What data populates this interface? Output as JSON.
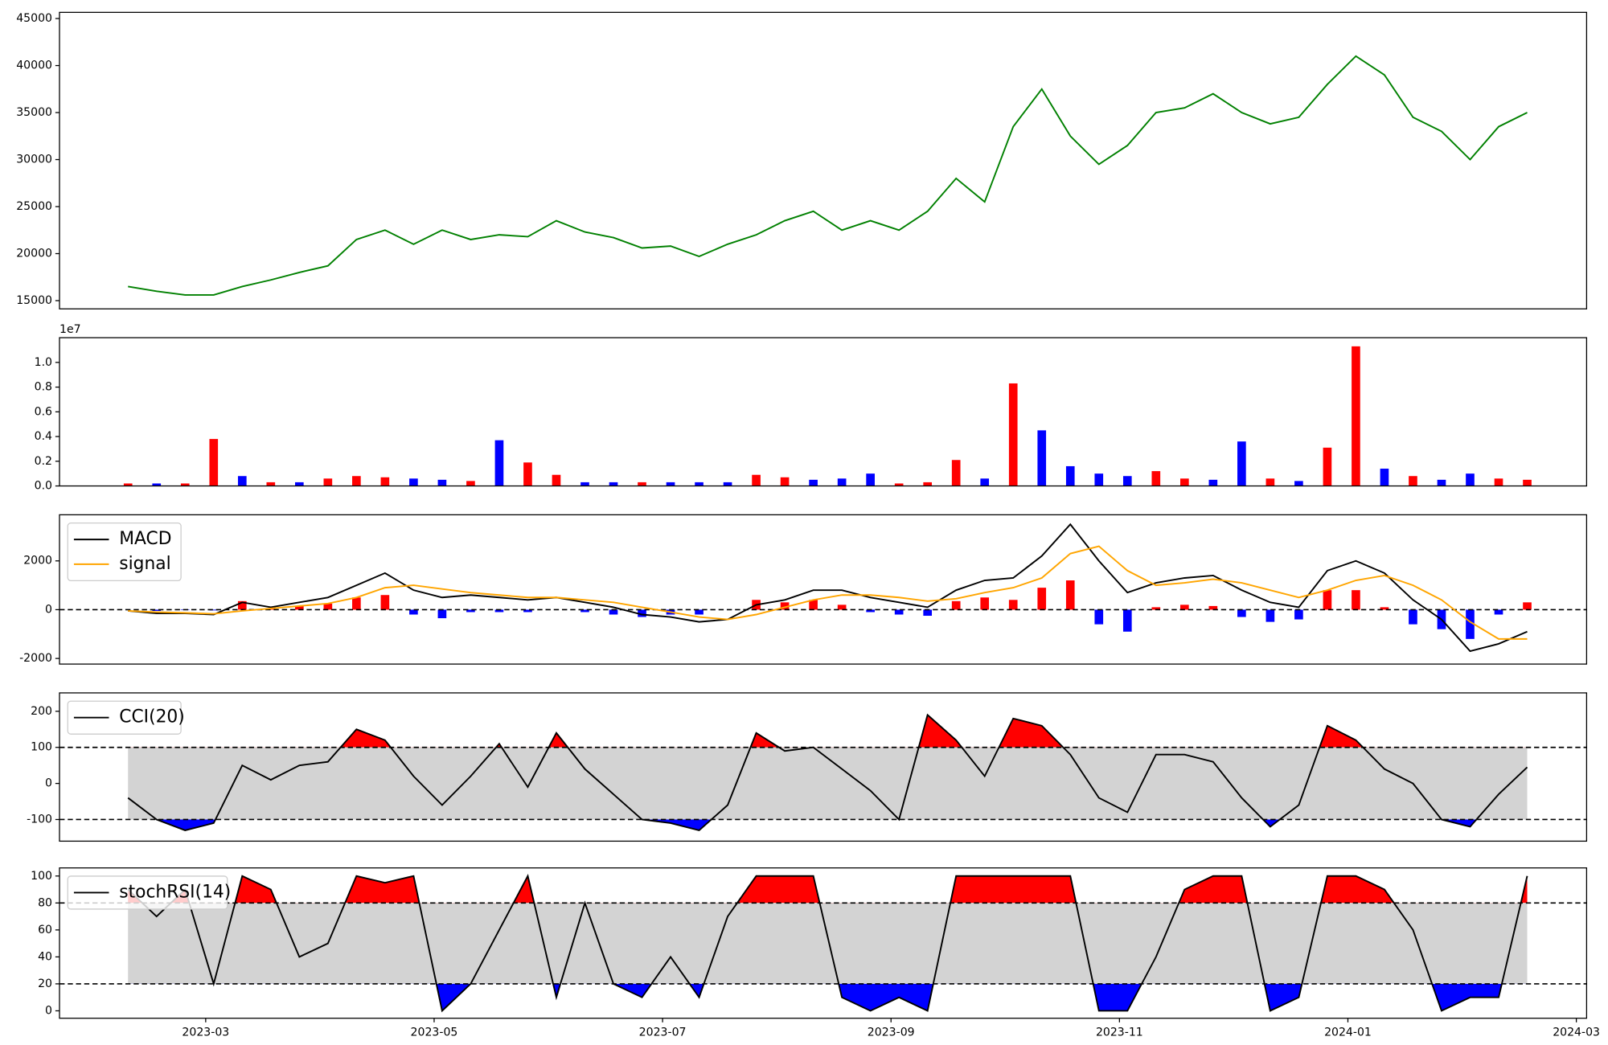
{
  "chart_data": [
    {
      "type": "line",
      "color": "#008000",
      "xlim": [
        0.72,
        14.09
      ],
      "ylim": [
        14124,
        45657
      ],
      "yticks": [
        15000,
        20000,
        25000,
        30000,
        35000,
        40000,
        45000
      ],
      "x": [
        1.32,
        1.57,
        1.82,
        2.07,
        2.32,
        2.57,
        2.82,
        3.07,
        3.32,
        3.57,
        3.82,
        4.07,
        4.32,
        4.57,
        4.82,
        5.07,
        5.32,
        5.57,
        5.82,
        6.07,
        6.32,
        6.57,
        6.82,
        7.07,
        7.32,
        7.57,
        7.82,
        8.07,
        8.32,
        8.57,
        8.82,
        9.07,
        9.32,
        9.57,
        9.82,
        10.07,
        10.32,
        10.57,
        10.82,
        11.07,
        11.32,
        11.57,
        11.82,
        12.07,
        12.32,
        12.57,
        12.82,
        13.07,
        13.32,
        13.57
      ],
      "values": [
        16500,
        16000,
        15600,
        15600,
        16500,
        17200,
        18000,
        18700,
        21500,
        22500,
        21000,
        22500,
        21500,
        22000,
        21800,
        23500,
        22300,
        21700,
        20600,
        20800,
        19700,
        21000,
        22000,
        23500,
        24500,
        22500,
        23500,
        22500,
        24500,
        28000,
        25500,
        33500,
        37500,
        32500,
        29500,
        31500,
        35000,
        35500,
        37000,
        35000,
        33800,
        34500,
        38000,
        41000,
        39000,
        34500,
        33000,
        30000,
        33500,
        35000
      ]
    },
    {
      "type": "bar",
      "offset_label": "1e7",
      "xlim": [
        0.72,
        14.09
      ],
      "ylim": [
        0,
        1.2
      ],
      "yticks": [
        {
          "value": 0,
          "label": "0.0"
        },
        {
          "value": 0.2,
          "label": "0.2"
        },
        {
          "value": 0.4,
          "label": "0.4"
        },
        {
          "value": 0.6,
          "label": "0.6"
        },
        {
          "value": 0.8,
          "label": "0.8"
        },
        {
          "value": 1,
          "label": "1.0"
        }
      ],
      "x": [
        1.32,
        1.57,
        1.82,
        2.07,
        2.32,
        2.57,
        2.82,
        3.07,
        3.32,
        3.57,
        3.82,
        4.07,
        4.32,
        4.57,
        4.82,
        5.07,
        5.32,
        5.57,
        5.82,
        6.07,
        6.32,
        6.57,
        6.82,
        7.07,
        7.32,
        7.57,
        7.82,
        8.07,
        8.32,
        8.57,
        8.82,
        9.07,
        9.32,
        9.57,
        9.82,
        10.07,
        10.32,
        10.57,
        10.82,
        11.07,
        11.32,
        11.57,
        11.82,
        12.07,
        12.32,
        12.57,
        12.82,
        13.07,
        13.32,
        13.57
      ],
      "values": [
        0.02,
        0.02,
        0.02,
        0.38,
        0.08,
        0.03,
        0.03,
        0.06,
        0.08,
        0.07,
        0.06,
        0.05,
        0.04,
        0.37,
        0.19,
        0.09,
        0.03,
        0.03,
        0.03,
        0.03,
        0.03,
        0.03,
        0.09,
        0.07,
        0.05,
        0.06,
        0.1,
        0.02,
        0.03,
        0.21,
        0.06,
        0.83,
        0.45,
        0.16,
        0.1,
        0.08,
        0.12,
        0.06,
        0.05,
        0.36,
        0.06,
        0.04,
        0.31,
        1.13,
        0.14,
        0.08,
        0.05,
        0.1,
        0.06,
        0.05
      ],
      "colors": [
        "red",
        "blue",
        "red",
        "red",
        "blue",
        "red",
        "blue",
        "red",
        "red",
        "red",
        "blue",
        "blue",
        "red",
        "blue",
        "red",
        "red",
        "blue",
        "blue",
        "red",
        "blue",
        "blue",
        "blue",
        "red",
        "red",
        "blue",
        "blue",
        "blue",
        "red",
        "red",
        "red",
        "blue",
        "red",
        "blue",
        "blue",
        "blue",
        "blue",
        "red",
        "red",
        "blue",
        "blue",
        "red",
        "blue",
        "red",
        "red",
        "blue",
        "red",
        "blue",
        "blue",
        "red",
        "red"
      ]
    },
    {
      "type": "macd",
      "xlim": [
        0.72,
        14.09
      ],
      "ylim": [
        -2230,
        3890
      ],
      "yticks": [
        -2000,
        0,
        2000
      ],
      "hlines": [
        0
      ],
      "legend": "upper left",
      "x": [
        1.32,
        1.57,
        1.82,
        2.07,
        2.32,
        2.57,
        2.82,
        3.07,
        3.32,
        3.57,
        3.82,
        4.07,
        4.32,
        4.57,
        4.82,
        5.07,
        5.32,
        5.57,
        5.82,
        6.07,
        6.32,
        6.57,
        6.82,
        7.07,
        7.32,
        7.57,
        7.82,
        8.07,
        8.32,
        8.57,
        8.82,
        9.07,
        9.32,
        9.57,
        9.82,
        10.07,
        10.32,
        10.57,
        10.82,
        11.07,
        11.32,
        11.57,
        11.82,
        12.07,
        12.32,
        12.57,
        12.82,
        13.07,
        13.32,
        13.57
      ],
      "series": [
        {
          "name": "MACD",
          "color": "#000000",
          "values": [
            -50,
            -150,
            -150,
            -200,
            300,
            100,
            300,
            500,
            1000,
            1500,
            800,
            500,
            600,
            500,
            400,
            500,
            300,
            100,
            -200,
            -300,
            -500,
            -400,
            200,
            400,
            800,
            800,
            500,
            300,
            100,
            800,
            1200,
            1300,
            2200,
            3500,
            2000,
            700,
            1100,
            1300,
            1400,
            800,
            300,
            100,
            1600,
            2000,
            1500,
            400,
            -400,
            -1700,
            -1400,
            -900
          ]
        },
        {
          "name": "signal",
          "color": "#ffa500",
          "values": [
            -50,
            -100,
            -130,
            -170,
            -50,
            50,
            150,
            250,
            500,
            900,
            1000,
            850,
            700,
            600,
            500,
            500,
            400,
            300,
            100,
            -100,
            -300,
            -400,
            -200,
            100,
            400,
            600,
            600,
            500,
            350,
            450,
            700,
            900,
            1300,
            2300,
            2600,
            1600,
            1000,
            1100,
            1250,
            1100,
            800,
            500,
            800,
            1200,
            1400,
            1000,
            400,
            -500,
            -1200,
            -1200
          ]
        }
      ],
      "histogram": {
        "up_color": "red",
        "down_color": "blue",
        "values": [
          0,
          -50,
          -20,
          -30,
          350,
          50,
          150,
          250,
          500,
          600,
          -200,
          -350,
          -100,
          -100,
          -100,
          0,
          -100,
          -200,
          -300,
          -200,
          -200,
          0,
          400,
          300,
          400,
          200,
          -100,
          -200,
          -250,
          350,
          500,
          400,
          900,
          1200,
          -600,
          -900,
          100,
          200,
          150,
          -300,
          -500,
          -400,
          800,
          800,
          100,
          -600,
          -800,
          -1200,
          -200,
          300
        ]
      }
    },
    {
      "type": "band",
      "xlim": [
        0.72,
        14.09
      ],
      "ylim": [
        -160,
        251
      ],
      "yticks": [
        -100,
        0,
        100,
        200
      ],
      "bands": [
        -100,
        100
      ],
      "band_color": "#d3d3d3",
      "upper_color": "red",
      "lower_color": "blue",
      "legend": "upper left",
      "x": [
        1.32,
        1.57,
        1.82,
        2.07,
        2.32,
        2.57,
        2.82,
        3.07,
        3.32,
        3.57,
        3.82,
        4.07,
        4.32,
        4.57,
        4.82,
        5.07,
        5.32,
        5.57,
        5.82,
        6.07,
        6.32,
        6.57,
        6.82,
        7.07,
        7.32,
        7.57,
        7.82,
        8.07,
        8.32,
        8.57,
        8.82,
        9.07,
        9.32,
        9.57,
        9.82,
        10.07,
        10.32,
        10.57,
        10.82,
        11.07,
        11.32,
        11.57,
        11.82,
        12.07,
        12.32,
        12.57,
        12.82,
        13.07,
        13.32,
        13.57
      ],
      "series": [
        {
          "name": "CCI(20)",
          "color": "#000000",
          "values": [
            -40,
            -100,
            -130,
            -110,
            50,
            10,
            50,
            60,
            150,
            120,
            20,
            -60,
            20,
            110,
            -10,
            140,
            40,
            -30,
            -100,
            -110,
            -130,
            -60,
            140,
            90,
            100,
            40,
            -20,
            -100,
            190,
            120,
            20,
            180,
            160,
            80,
            -40,
            -80,
            80,
            80,
            60,
            -40,
            -120,
            -60,
            160,
            120,
            40,
            0,
            -100,
            -120,
            -30,
            45
          ]
        }
      ]
    },
    {
      "type": "band",
      "xlim": [
        0.72,
        14.09
      ],
      "ylim": [
        -5.5,
        106
      ],
      "yticks": [
        0,
        20,
        40,
        60,
        80,
        100
      ],
      "bands": [
        20,
        80
      ],
      "band_color": "#d3d3d3",
      "upper_color": "red",
      "lower_color": "blue",
      "legend": "upper left",
      "xticks": [
        {
          "value": 2,
          "label": "2023-03"
        },
        {
          "value": 4,
          "label": "2023-05"
        },
        {
          "value": 6,
          "label": "2023-07"
        },
        {
          "value": 8,
          "label": "2023-09"
        },
        {
          "value": 10,
          "label": "2023-11"
        },
        {
          "value": 12,
          "label": "2024-01"
        },
        {
          "value": 14,
          "label": "2024-03"
        }
      ],
      "x": [
        1.32,
        1.57,
        1.82,
        2.07,
        2.32,
        2.57,
        2.82,
        3.07,
        3.32,
        3.57,
        3.82,
        4.07,
        4.32,
        4.57,
        4.82,
        5.07,
        5.32,
        5.57,
        5.82,
        6.07,
        6.32,
        6.57,
        6.82,
        7.07,
        7.32,
        7.57,
        7.82,
        8.07,
        8.32,
        8.57,
        8.82,
        9.07,
        9.32,
        9.57,
        9.82,
        10.07,
        10.32,
        10.57,
        10.82,
        11.07,
        11.32,
        11.57,
        11.82,
        12.07,
        12.32,
        12.57,
        12.82,
        13.07,
        13.32,
        13.57
      ],
      "series": [
        {
          "name": "stochRSI(14)",
          "color": "#000000",
          "values": [
            90,
            70,
            90,
            20,
            100,
            90,
            40,
            50,
            100,
            95,
            100,
            0,
            20,
            60,
            100,
            10,
            80,
            20,
            10,
            40,
            10,
            70,
            100,
            100,
            100,
            10,
            0,
            10,
            0,
            100,
            100,
            100,
            100,
            100,
            0,
            0,
            40,
            90,
            100,
            100,
            0,
            10,
            100,
            100,
            90,
            60,
            0,
            10,
            10,
            100
          ]
        }
      ]
    }
  ]
}
